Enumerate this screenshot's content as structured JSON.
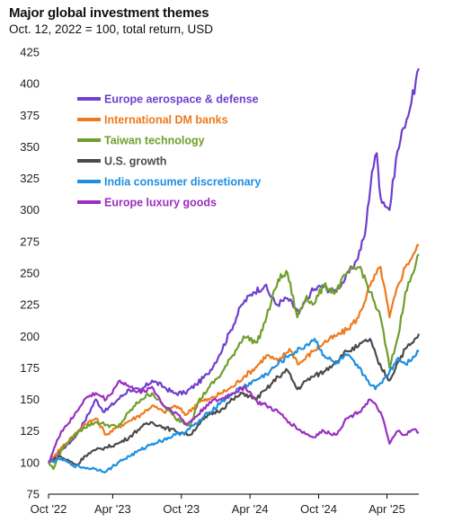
{
  "colors": {
    "europe_aero": "#6e3fcc",
    "intl_banks": "#ef7a1c",
    "taiwan_tech": "#6e9f2c",
    "us_growth": "#4a4a4a",
    "india_cons": "#1f8fe0",
    "europe_lux": "#9b2fc0",
    "axis": "#000000",
    "grid": "#d9d9d9"
  },
  "chart_data": {
    "type": "line",
    "title": "Major global investment themes",
    "subtitle": "Oct. 12, 2022 = 100, total return, USD",
    "xlabel": "",
    "ylabel": "",
    "ylim": [
      75,
      425
    ],
    "y_ticks": [
      75,
      100,
      125,
      150,
      175,
      200,
      225,
      250,
      275,
      300,
      325,
      350,
      375,
      400,
      425
    ],
    "x_domain": [
      "2022-10-12",
      "2025-06-25"
    ],
    "x_ticks": [
      {
        "label": "Oct '22",
        "date": "2022-10-12"
      },
      {
        "label": "Apr '23",
        "date": "2023-04-01"
      },
      {
        "label": "Oct '23",
        "date": "2023-10-01"
      },
      {
        "label": "Apr '24",
        "date": "2024-04-01"
      },
      {
        "label": "Oct '24",
        "date": "2024-10-01"
      },
      {
        "label": "Apr '25",
        "date": "2025-04-01"
      }
    ],
    "grid": false,
    "legend": "top-left",
    "series": [
      {
        "name": "Europe aerospace & defense",
        "color_key": "europe_aero",
        "points": [
          [
            "2022-10-12",
            100
          ],
          [
            "2022-11-15",
            110
          ],
          [
            "2022-12-15",
            118
          ],
          [
            "2023-01-15",
            132
          ],
          [
            "2023-02-15",
            150
          ],
          [
            "2023-03-10",
            140
          ],
          [
            "2023-04-15",
            150
          ],
          [
            "2023-05-15",
            158
          ],
          [
            "2023-06-15",
            157
          ],
          [
            "2023-07-15",
            165
          ],
          [
            "2023-08-15",
            160
          ],
          [
            "2023-09-10",
            155
          ],
          [
            "2023-10-10",
            155
          ],
          [
            "2023-11-10",
            162
          ],
          [
            "2023-12-10",
            170
          ],
          [
            "2024-01-10",
            185
          ],
          [
            "2024-02-10",
            205
          ],
          [
            "2024-03-10",
            225
          ],
          [
            "2024-04-10",
            235
          ],
          [
            "2024-05-10",
            240
          ],
          [
            "2024-06-10",
            225
          ],
          [
            "2024-07-10",
            230
          ],
          [
            "2024-08-10",
            218
          ],
          [
            "2024-09-10",
            235
          ],
          [
            "2024-10-10",
            240
          ],
          [
            "2024-11-10",
            235
          ],
          [
            "2024-12-10",
            245
          ],
          [
            "2025-01-10",
            260
          ],
          [
            "2025-02-01",
            280
          ],
          [
            "2025-02-20",
            330
          ],
          [
            "2025-03-05",
            345
          ],
          [
            "2025-03-15",
            310
          ],
          [
            "2025-04-08",
            300
          ],
          [
            "2025-04-25",
            340
          ],
          [
            "2025-05-15",
            365
          ],
          [
            "2025-06-05",
            385
          ],
          [
            "2025-06-25",
            412
          ]
        ]
      },
      {
        "name": "International DM banks",
        "color_key": "intl_banks",
        "points": [
          [
            "2022-10-12",
            100
          ],
          [
            "2022-11-15",
            112
          ],
          [
            "2022-12-15",
            120
          ],
          [
            "2023-01-15",
            130
          ],
          [
            "2023-02-15",
            135
          ],
          [
            "2023-03-15",
            122
          ],
          [
            "2023-04-15",
            128
          ],
          [
            "2023-05-15",
            133
          ],
          [
            "2023-06-15",
            138
          ],
          [
            "2023-07-15",
            145
          ],
          [
            "2023-08-15",
            140
          ],
          [
            "2023-09-15",
            145
          ],
          [
            "2023-10-15",
            138
          ],
          [
            "2023-11-15",
            148
          ],
          [
            "2023-12-15",
            150
          ],
          [
            "2024-01-15",
            155
          ],
          [
            "2024-02-15",
            160
          ],
          [
            "2024-03-15",
            168
          ],
          [
            "2024-04-15",
            175
          ],
          [
            "2024-05-15",
            185
          ],
          [
            "2024-06-15",
            180
          ],
          [
            "2024-07-15",
            190
          ],
          [
            "2024-08-10",
            178
          ],
          [
            "2024-09-15",
            188
          ],
          [
            "2024-10-15",
            195
          ],
          [
            "2024-11-15",
            200
          ],
          [
            "2024-12-15",
            205
          ],
          [
            "2025-01-15",
            215
          ],
          [
            "2025-02-15",
            240
          ],
          [
            "2025-03-15",
            255
          ],
          [
            "2025-04-08",
            215
          ],
          [
            "2025-04-30",
            240
          ],
          [
            "2025-05-20",
            255
          ],
          [
            "2025-06-10",
            265
          ],
          [
            "2025-06-25",
            272
          ]
        ]
      },
      {
        "name": "Taiwan technology",
        "color_key": "taiwan_tech",
        "points": [
          [
            "2022-10-12",
            100
          ],
          [
            "2022-10-25",
            95
          ],
          [
            "2022-11-15",
            110
          ],
          [
            "2022-12-15",
            120
          ],
          [
            "2023-01-15",
            128
          ],
          [
            "2023-02-15",
            132
          ],
          [
            "2023-03-15",
            130
          ],
          [
            "2023-04-15",
            128
          ],
          [
            "2023-05-15",
            140
          ],
          [
            "2023-06-15",
            150
          ],
          [
            "2023-07-15",
            155
          ],
          [
            "2023-08-15",
            145
          ],
          [
            "2023-09-15",
            135
          ],
          [
            "2023-10-25",
            130
          ],
          [
            "2023-11-15",
            148
          ],
          [
            "2023-12-15",
            160
          ],
          [
            "2024-01-15",
            170
          ],
          [
            "2024-02-15",
            185
          ],
          [
            "2024-03-15",
            200
          ],
          [
            "2024-04-20",
            195
          ],
          [
            "2024-05-15",
            215
          ],
          [
            "2024-06-15",
            245
          ],
          [
            "2024-07-10",
            250
          ],
          [
            "2024-08-05",
            215
          ],
          [
            "2024-08-30",
            232
          ],
          [
            "2024-09-15",
            225
          ],
          [
            "2024-10-15",
            240
          ],
          [
            "2024-11-15",
            235
          ],
          [
            "2024-12-15",
            250
          ],
          [
            "2025-01-20",
            255
          ],
          [
            "2025-02-15",
            235
          ],
          [
            "2025-03-15",
            215
          ],
          [
            "2025-04-08",
            175
          ],
          [
            "2025-05-01",
            200
          ],
          [
            "2025-05-20",
            235
          ],
          [
            "2025-06-10",
            250
          ],
          [
            "2025-06-25",
            265
          ]
        ]
      },
      {
        "name": "U.S. growth",
        "color_key": "us_growth",
        "points": [
          [
            "2022-10-12",
            100
          ],
          [
            "2022-11-10",
            105
          ],
          [
            "2022-12-28",
            98
          ],
          [
            "2023-01-15",
            105
          ],
          [
            "2023-02-15",
            110
          ],
          [
            "2023-03-15",
            112
          ],
          [
            "2023-04-15",
            115
          ],
          [
            "2023-05-15",
            120
          ],
          [
            "2023-06-15",
            128
          ],
          [
            "2023-07-15",
            132
          ],
          [
            "2023-08-15",
            128
          ],
          [
            "2023-09-15",
            125
          ],
          [
            "2023-10-25",
            122
          ],
          [
            "2023-11-15",
            130
          ],
          [
            "2023-12-15",
            138
          ],
          [
            "2024-01-15",
            142
          ],
          [
            "2024-02-15",
            150
          ],
          [
            "2024-03-15",
            155
          ],
          [
            "2024-04-15",
            150
          ],
          [
            "2024-05-15",
            158
          ],
          [
            "2024-06-15",
            168
          ],
          [
            "2024-07-10",
            173
          ],
          [
            "2024-08-05",
            158
          ],
          [
            "2024-08-30",
            165
          ],
          [
            "2024-09-15",
            168
          ],
          [
            "2024-10-15",
            172
          ],
          [
            "2024-11-15",
            180
          ],
          [
            "2024-12-15",
            188
          ],
          [
            "2025-01-15",
            192
          ],
          [
            "2025-02-15",
            198
          ],
          [
            "2025-03-10",
            178
          ],
          [
            "2025-04-08",
            165
          ],
          [
            "2025-05-01",
            180
          ],
          [
            "2025-05-20",
            190
          ],
          [
            "2025-06-10",
            195
          ],
          [
            "2025-06-25",
            202
          ]
        ]
      },
      {
        "name": "India consumer discretionary",
        "color_key": "india_cons",
        "points": [
          [
            "2022-10-12",
            100
          ],
          [
            "2022-11-15",
            103
          ],
          [
            "2022-12-15",
            98
          ],
          [
            "2023-01-15",
            96
          ],
          [
            "2023-02-15",
            95
          ],
          [
            "2023-03-15",
            93
          ],
          [
            "2023-04-15",
            100
          ],
          [
            "2023-05-15",
            105
          ],
          [
            "2023-06-15",
            110
          ],
          [
            "2023-07-15",
            115
          ],
          [
            "2023-08-15",
            118
          ],
          [
            "2023-09-15",
            122
          ],
          [
            "2023-10-15",
            125
          ],
          [
            "2023-11-15",
            132
          ],
          [
            "2023-12-15",
            140
          ],
          [
            "2024-01-15",
            148
          ],
          [
            "2024-02-15",
            155
          ],
          [
            "2024-03-15",
            160
          ],
          [
            "2024-04-15",
            165
          ],
          [
            "2024-05-15",
            170
          ],
          [
            "2024-06-15",
            178
          ],
          [
            "2024-07-15",
            185
          ],
          [
            "2024-08-15",
            190
          ],
          [
            "2024-09-20",
            198
          ],
          [
            "2024-10-15",
            185
          ],
          [
            "2024-11-15",
            178
          ],
          [
            "2024-12-15",
            185
          ],
          [
            "2025-01-15",
            175
          ],
          [
            "2025-02-10",
            165
          ],
          [
            "2025-03-01",
            158
          ],
          [
            "2025-03-15",
            163
          ],
          [
            "2025-04-08",
            172
          ],
          [
            "2025-05-01",
            183
          ],
          [
            "2025-05-20",
            178
          ],
          [
            "2025-06-10",
            184
          ],
          [
            "2025-06-25",
            188
          ]
        ]
      },
      {
        "name": "Europe luxury goods",
        "color_key": "europe_lux",
        "points": [
          [
            "2022-10-12",
            100
          ],
          [
            "2022-11-15",
            125
          ],
          [
            "2022-12-15",
            135
          ],
          [
            "2023-01-15",
            150
          ],
          [
            "2023-02-15",
            155
          ],
          [
            "2023-03-15",
            150
          ],
          [
            "2023-04-20",
            165
          ],
          [
            "2023-05-15",
            160
          ],
          [
            "2023-06-15",
            155
          ],
          [
            "2023-07-15",
            160
          ],
          [
            "2023-08-15",
            145
          ],
          [
            "2023-09-15",
            140
          ],
          [
            "2023-10-15",
            130
          ],
          [
            "2023-11-15",
            138
          ],
          [
            "2023-12-15",
            148
          ],
          [
            "2024-01-15",
            150
          ],
          [
            "2024-02-15",
            155
          ],
          [
            "2024-03-20",
            160
          ],
          [
            "2024-04-20",
            148
          ],
          [
            "2024-05-15",
            145
          ],
          [
            "2024-06-15",
            140
          ],
          [
            "2024-07-15",
            132
          ],
          [
            "2024-08-15",
            125
          ],
          [
            "2024-09-15",
            120
          ],
          [
            "2024-10-15",
            125
          ],
          [
            "2024-11-15",
            122
          ],
          [
            "2024-12-15",
            135
          ],
          [
            "2025-01-15",
            140
          ],
          [
            "2025-02-15",
            150
          ],
          [
            "2025-03-15",
            140
          ],
          [
            "2025-04-08",
            115
          ],
          [
            "2025-04-30",
            125
          ],
          [
            "2025-05-20",
            122
          ],
          [
            "2025-06-10",
            126
          ],
          [
            "2025-06-25",
            124
          ]
        ]
      }
    ]
  }
}
